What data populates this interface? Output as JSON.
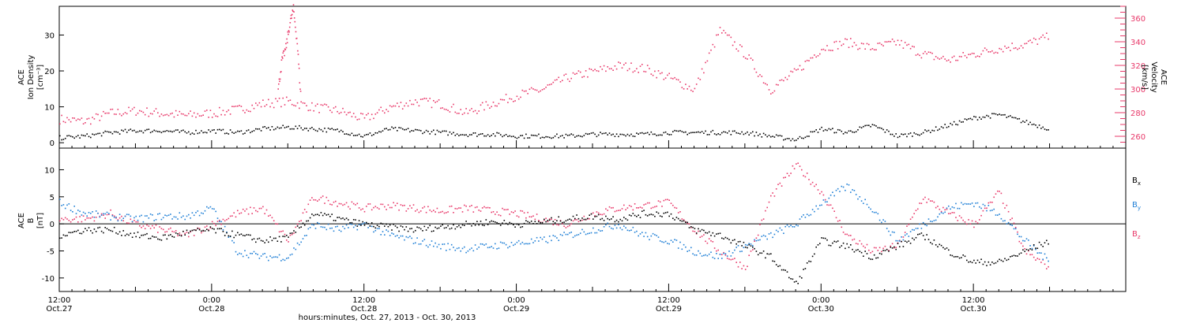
{
  "colors": {
    "black": "#000000",
    "pink": "#e8396a",
    "blue": "#1f7fd6",
    "frame": "#000000"
  },
  "chart_data": [
    {
      "type": "scatter",
      "panel": "top",
      "ylabel_left": [
        "ACE",
        "Ion Density",
        "[cm⁻³]"
      ],
      "ylabel_right": [
        "ACE",
        "Velocity",
        "[km/s]"
      ],
      "left_axis": {
        "ylim": [
          -1.5,
          38
        ],
        "ticks": [
          0,
          10,
          20,
          30
        ]
      },
      "right_axis": {
        "ylim": [
          250,
          370
        ],
        "ticks": [
          260,
          280,
          300,
          320,
          340,
          360
        ]
      },
      "series": [
        {
          "axis": "left",
          "color": "#000000",
          "x": [
            0,
            2,
            4,
            6,
            8,
            10,
            12,
            14,
            16,
            18,
            20,
            22,
            24,
            26,
            28,
            30,
            32,
            34,
            36,
            38,
            40,
            42,
            44,
            46,
            48,
            50,
            52,
            54,
            56,
            58,
            60,
            62,
            64,
            66,
            68,
            70,
            72,
            74,
            76,
            78
          ],
          "y": [
            1.5,
            2,
            3,
            3.5,
            3.5,
            3,
            3.5,
            3,
            4,
            4.5,
            4,
            3.5,
            2,
            4,
            3.5,
            3,
            2.5,
            2.5,
            2,
            2,
            2,
            2.5,
            2.5,
            2.5,
            3,
            3,
            3,
            3,
            2,
            1,
            4,
            3,
            5,
            2,
            3,
            5,
            7,
            8,
            6,
            4
          ]
        },
        {
          "axis": "right",
          "color": "#e8396a",
          "x": [
            0,
            2,
            4,
            6,
            8,
            10,
            12,
            14,
            16,
            18,
            20,
            22,
            24,
            26,
            28,
            30,
            32,
            34,
            36,
            38,
            40,
            42,
            44,
            46,
            48,
            50,
            52,
            54,
            56,
            58,
            60,
            62,
            64,
            66,
            68,
            70,
            72,
            74,
            76,
            78
          ],
          "y": [
            275,
            273,
            280,
            282,
            280,
            278,
            280,
            283,
            288,
            290,
            285,
            282,
            275,
            285,
            290,
            288,
            280,
            288,
            295,
            300,
            310,
            315,
            320,
            318,
            310,
            300,
            350,
            330,
            300,
            315,
            335,
            340,
            335,
            340,
            330,
            325,
            330,
            335,
            338,
            345
          ]
        }
      ],
      "spike": {
        "x": [
          17.2,
          17.5,
          17.8,
          18.1,
          18.4,
          18.7,
          19.0
        ],
        "y": [
          300,
          325,
          335,
          355,
          368,
          340,
          290
        ]
      }
    },
    {
      "type": "scatter",
      "panel": "bottom",
      "ylabel_left": [
        "ACE",
        "B",
        "[nT]"
      ],
      "left_axis": {
        "ylim": [
          -12.5,
          14
        ],
        "ticks": [
          -10,
          -5,
          0,
          5,
          10
        ]
      },
      "zero_line": true,
      "legend": [
        {
          "text": "B",
          "sub": "x",
          "color": "#000000"
        },
        {
          "text": "B",
          "sub": "y",
          "color": "#1f7fd6"
        },
        {
          "text": "B",
          "sub": "z",
          "color": "#e8396a"
        }
      ],
      "series": [
        {
          "color": "#000000",
          "x": [
            0,
            2,
            4,
            6,
            8,
            10,
            12,
            14,
            16,
            18,
            20,
            22,
            24,
            26,
            28,
            30,
            32,
            34,
            36,
            38,
            40,
            42,
            44,
            46,
            48,
            50,
            52,
            54,
            56,
            58,
            60,
            62,
            64,
            66,
            68,
            70,
            72,
            74,
            76,
            78
          ],
          "y": [
            -2,
            -1,
            -1,
            -2,
            -2.5,
            -1.5,
            -1,
            -2,
            -3,
            -2.5,
            2,
            1,
            0,
            -0.5,
            -1,
            -0.5,
            0,
            0.5,
            0,
            0.5,
            1,
            1.5,
            1,
            2,
            2,
            -1,
            -2,
            -4,
            -6,
            -11,
            -3,
            -4,
            -6,
            -4,
            -2,
            -5,
            -7,
            -7,
            -5,
            -3
          ]
        },
        {
          "color": "#1f7fd6",
          "x": [
            0,
            2,
            4,
            6,
            8,
            10,
            12,
            14,
            16,
            18,
            20,
            22,
            24,
            26,
            28,
            30,
            32,
            34,
            36,
            38,
            40,
            42,
            44,
            46,
            48,
            50,
            52,
            54,
            56,
            58,
            60,
            62,
            64,
            66,
            68,
            70,
            72,
            74,
            76,
            78
          ],
          "y": [
            4,
            2,
            1.5,
            1,
            1.5,
            1.5,
            3,
            -5,
            -6,
            -6,
            0,
            -1,
            0,
            -2,
            -3,
            -4,
            -4.5,
            -4,
            -3.5,
            -3,
            -2,
            -1,
            0,
            -2,
            -3,
            -5,
            -6,
            -4,
            -2,
            0,
            4,
            7,
            3,
            -3,
            0,
            3,
            4,
            2,
            -3,
            -7
          ]
        },
        {
          "color": "#e8396a",
          "x": [
            0,
            2,
            4,
            6,
            8,
            10,
            12,
            14,
            16,
            18,
            20,
            22,
            24,
            26,
            28,
            30,
            32,
            34,
            36,
            38,
            40,
            42,
            44,
            46,
            48,
            50,
            52,
            54,
            56,
            58,
            60,
            62,
            64,
            66,
            68,
            70,
            72,
            74,
            76,
            78
          ],
          "y": [
            1,
            1,
            2,
            0,
            -1,
            -2,
            0,
            2,
            3,
            -3,
            5,
            4,
            3,
            3.5,
            3,
            2.5,
            3,
            2.5,
            2,
            1,
            0,
            2,
            3,
            3.5,
            4,
            -1,
            -5,
            -8,
            5,
            11,
            6,
            -2,
            -5,
            -4,
            5,
            2,
            0,
            6,
            -5,
            -8
          ]
        }
      ]
    }
  ],
  "time_axis": {
    "x_range_hours": [
      0,
      84
    ],
    "labels": [
      {
        "hours": 0,
        "time": "12:00",
        "date": "Oct.27"
      },
      {
        "hours": 12,
        "time": "0:00",
        "date": "Oct.28"
      },
      {
        "hours": 24,
        "time": "12:00",
        "date": "Oct.28"
      },
      {
        "hours": 36,
        "time": "0:00",
        "date": "Oct.29"
      },
      {
        "hours": 48,
        "time": "12:00",
        "date": "Oct.29"
      },
      {
        "hours": 60,
        "time": "0:00",
        "date": "Oct.30"
      },
      {
        "hours": 72,
        "time": "12:00",
        "date": "Oct.30"
      }
    ],
    "xlabel": "hours:minutes, Oct. 27, 2013 - Oct. 30, 2013"
  }
}
